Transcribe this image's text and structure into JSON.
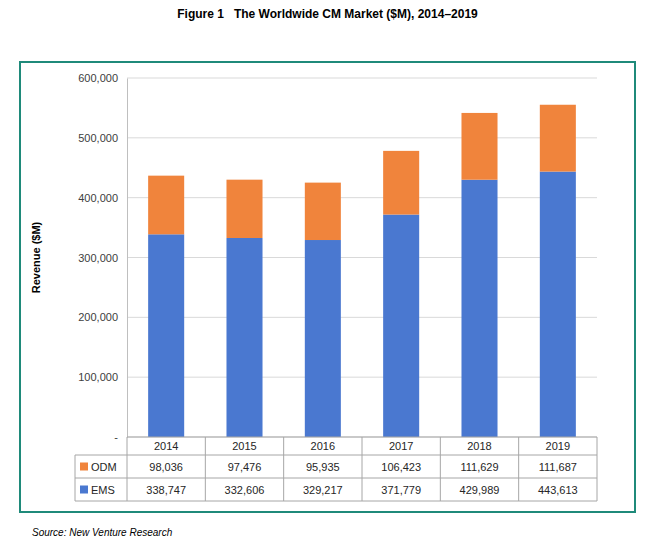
{
  "chart_data": {
    "type": "bar",
    "title": "Figure 1   The Worldwide CM Market ($M), 2014–2019",
    "y_label": "Revenue ($M)",
    "source": "Source: New Venture Research",
    "stacked": true,
    "grid": true,
    "categories": [
      "2014",
      "2015",
      "2016",
      "2017",
      "2018",
      "2019"
    ],
    "series": [
      {
        "name": "EMS",
        "color": "#4a78d0",
        "values": [
          338747,
          332606,
          329217,
          371779,
          429989,
          443613
        ],
        "value_labels": [
          "338,747",
          "332,606",
          "329,217",
          "371,779",
          "429,989",
          "443,613"
        ]
      },
      {
        "name": "ODM",
        "color": "#f0843c",
        "values": [
          98036,
          97476,
          95935,
          106423,
          111629,
          111687
        ],
        "value_labels": [
          "98,036",
          "97,476",
          "95,935",
          "106,423",
          "111,629",
          "111,687"
        ]
      }
    ],
    "ylim": [
      0,
      600000
    ],
    "yticks": [
      {
        "value": 0,
        "label": "-"
      },
      {
        "value": 100000,
        "label": "100,000"
      },
      {
        "value": 200000,
        "label": "200,000"
      },
      {
        "value": 300000,
        "label": "300,000"
      },
      {
        "value": 400000,
        "label": "400,000"
      },
      {
        "value": 500000,
        "label": "500,000"
      },
      {
        "value": 600000,
        "label": "600,000"
      }
    ]
  }
}
